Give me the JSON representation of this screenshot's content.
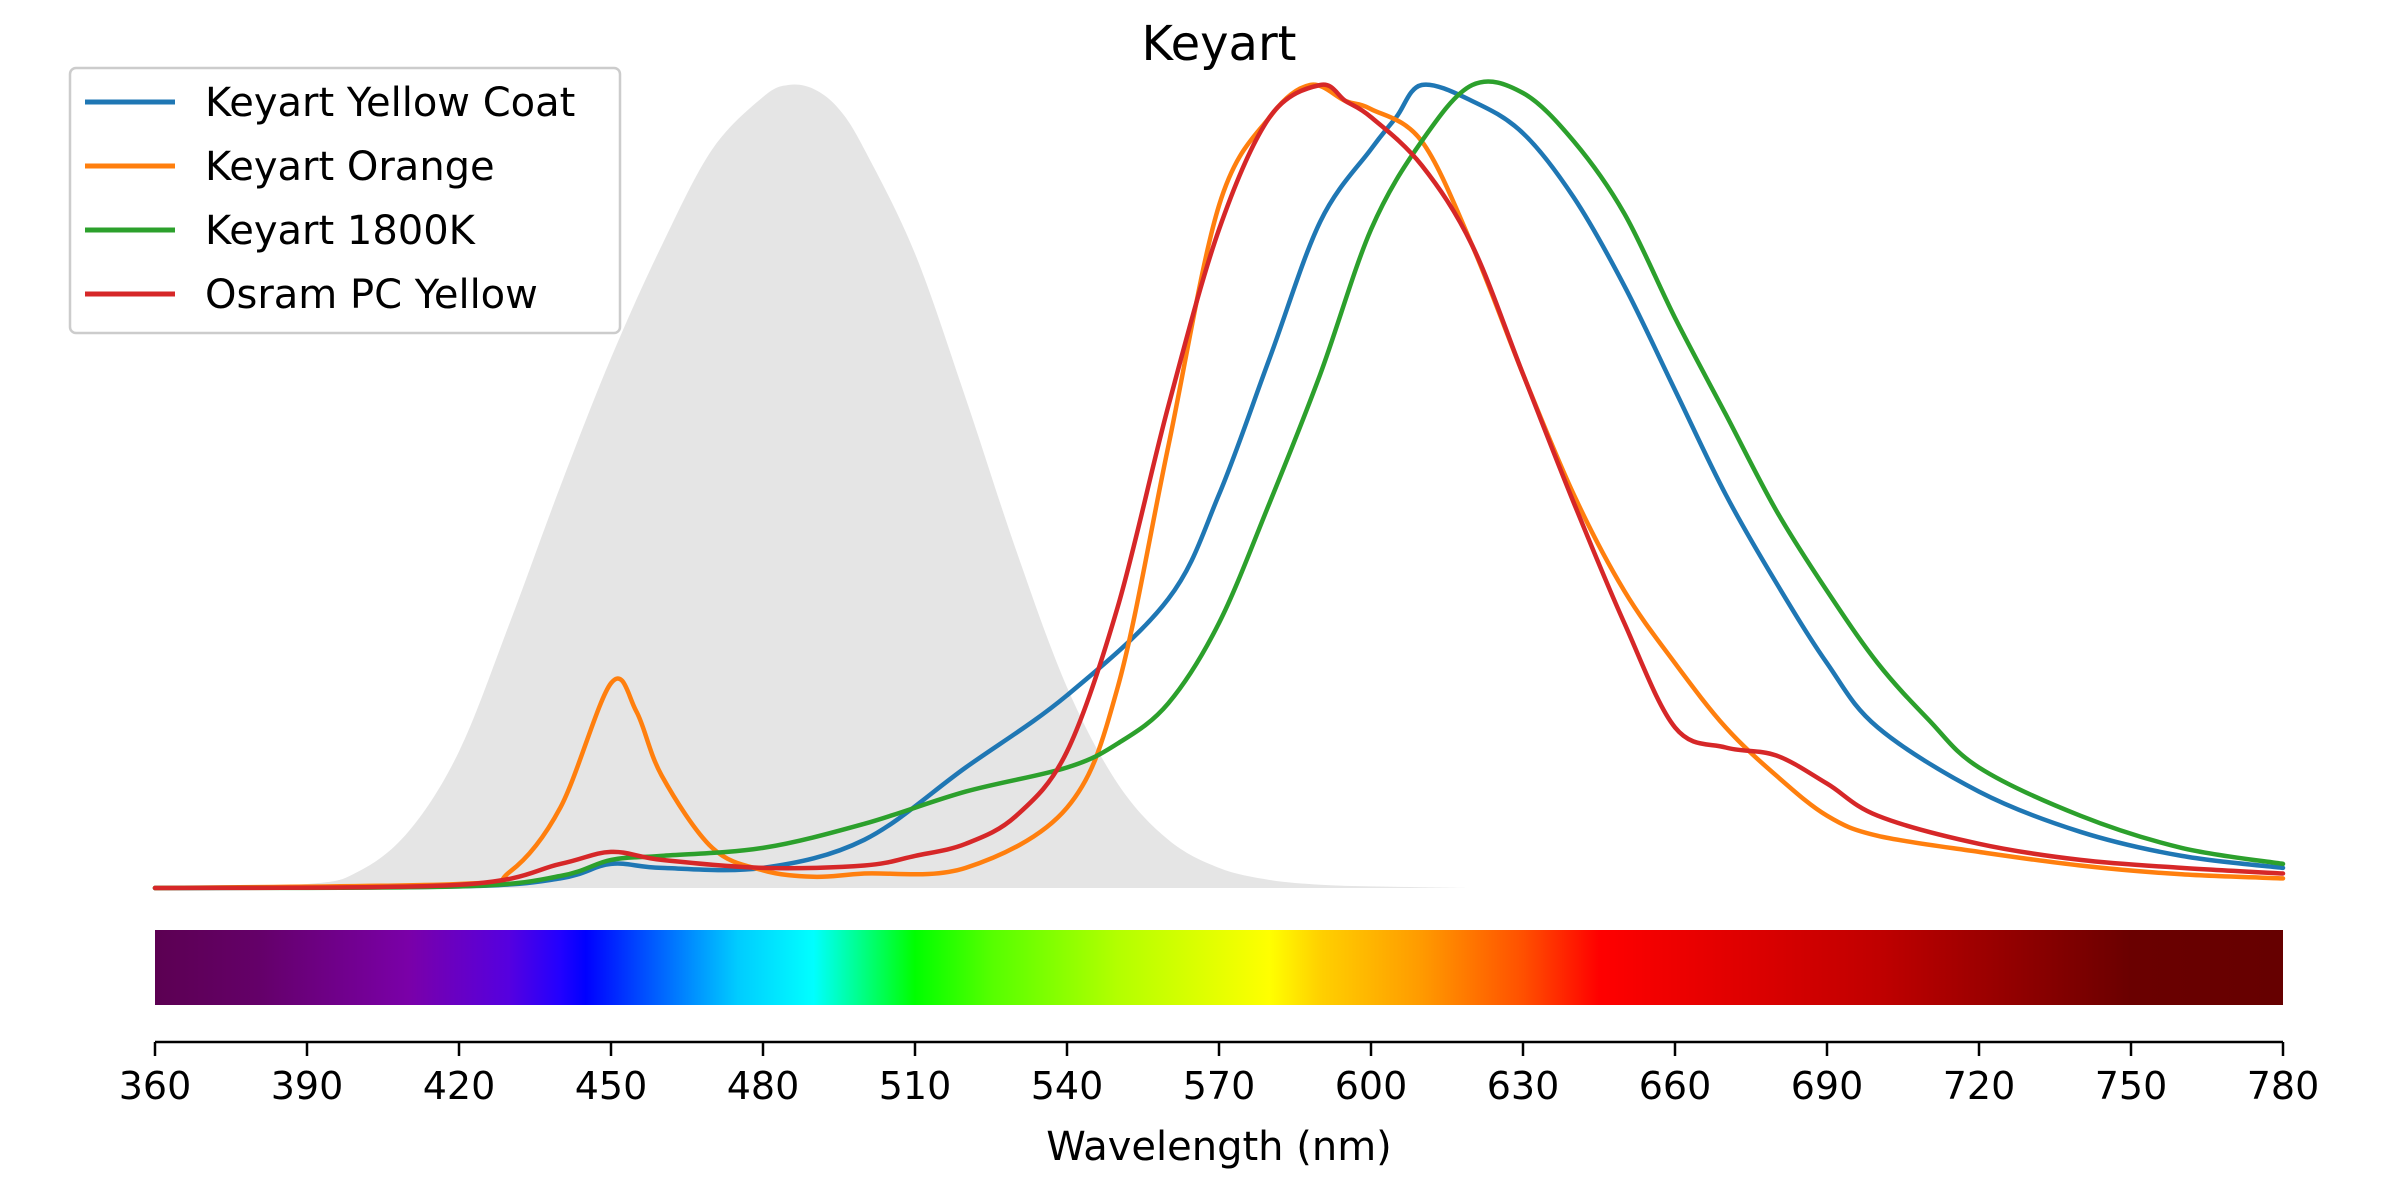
{
  "chart_data": {
    "type": "line",
    "title": "Keyart",
    "xlabel": "Wavelength (nm)",
    "ylabel": "",
    "xlim": [
      360,
      780
    ],
    "ylim": [
      0,
      1
    ],
    "grid": false,
    "legend_position": "top-left",
    "xticks": [
      360,
      390,
      420,
      450,
      480,
      510,
      540,
      570,
      600,
      630,
      660,
      690,
      720,
      750,
      780
    ],
    "background_curve": {
      "color": "#e5e5e5",
      "x": [
        360,
        390,
        400,
        410,
        420,
        430,
        440,
        450,
        460,
        470,
        480,
        485,
        490,
        495,
        500,
        510,
        520,
        530,
        540,
        550,
        560,
        570,
        580,
        590,
        600,
        610,
        620
      ],
      "y": [
        0,
        0.005,
        0.02,
        0.07,
        0.17,
        0.33,
        0.5,
        0.66,
        0.8,
        0.92,
        0.985,
        1.0,
        0.995,
        0.97,
        0.92,
        0.79,
        0.61,
        0.42,
        0.25,
        0.13,
        0.06,
        0.025,
        0.01,
        0.004,
        0.002,
        0.001,
        0
      ]
    },
    "spectrum_bar": {
      "stops": [
        {
          "nm": 360,
          "color": "#5c0052"
        },
        {
          "nm": 380,
          "color": "#640068"
        },
        {
          "nm": 410,
          "color": "#7a00a8"
        },
        {
          "nm": 430,
          "color": "#5500e0"
        },
        {
          "nm": 440,
          "color": "#2200ff"
        },
        {
          "nm": 445,
          "color": "#0000ff"
        },
        {
          "nm": 460,
          "color": "#0066ff"
        },
        {
          "nm": 475,
          "color": "#00ccff"
        },
        {
          "nm": 490,
          "color": "#00ffff"
        },
        {
          "nm": 500,
          "color": "#00ff80"
        },
        {
          "nm": 510,
          "color": "#00ff00"
        },
        {
          "nm": 525,
          "color": "#55ff00"
        },
        {
          "nm": 550,
          "color": "#b3ff00"
        },
        {
          "nm": 580,
          "color": "#ffff00"
        },
        {
          "nm": 590,
          "color": "#ffd000"
        },
        {
          "nm": 610,
          "color": "#ff9a00"
        },
        {
          "nm": 630,
          "color": "#ff5000"
        },
        {
          "nm": 645,
          "color": "#ff0000"
        },
        {
          "nm": 700,
          "color": "#c00000"
        },
        {
          "nm": 750,
          "color": "#6a0000"
        },
        {
          "nm": 780,
          "color": "#660000"
        }
      ]
    },
    "series": [
      {
        "name": "Keyart Yellow Coat",
        "color": "#1f77b4",
        "x": [
          360,
          420,
          440,
          450,
          460,
          480,
          500,
          520,
          540,
          560,
          570,
          580,
          590,
          600,
          605,
          610,
          620,
          630,
          640,
          650,
          660,
          670,
          680,
          690,
          700,
          720,
          740,
          760,
          780
        ],
        "y": [
          0.0,
          0.002,
          0.012,
          0.03,
          0.025,
          0.025,
          0.06,
          0.15,
          0.24,
          0.36,
          0.49,
          0.66,
          0.83,
          0.92,
          0.96,
          1.0,
          0.98,
          0.94,
          0.86,
          0.75,
          0.62,
          0.49,
          0.38,
          0.28,
          0.2,
          0.12,
          0.07,
          0.04,
          0.025
        ]
      },
      {
        "name": "Keyart Orange",
        "color": "#ff7f0e",
        "x": [
          360,
          420,
          430,
          440,
          450,
          455,
          460,
          470,
          480,
          490,
          500,
          520,
          540,
          550,
          560,
          570,
          580,
          588,
          595,
          600,
          610,
          620,
          630,
          640,
          650,
          660,
          670,
          680,
          690,
          700,
          720,
          740,
          760,
          780
        ],
        "y": [
          0.0,
          0.005,
          0.02,
          0.1,
          0.255,
          0.22,
          0.14,
          0.05,
          0.022,
          0.014,
          0.018,
          0.025,
          0.1,
          0.25,
          0.55,
          0.85,
          0.96,
          1.0,
          0.98,
          0.97,
          0.93,
          0.8,
          0.64,
          0.49,
          0.37,
          0.28,
          0.2,
          0.14,
          0.09,
          0.065,
          0.045,
          0.028,
          0.017,
          0.012
        ]
      },
      {
        "name": "Keyart 1800K",
        "color": "#2ca02c",
        "x": [
          360,
          420,
          440,
          450,
          460,
          480,
          500,
          520,
          540,
          550,
          560,
          570,
          580,
          590,
          600,
          610,
          620,
          630,
          640,
          650,
          660,
          670,
          680,
          690,
          700,
          710,
          720,
          740,
          760,
          780
        ],
        "y": [
          0.0,
          0.002,
          0.015,
          0.035,
          0.04,
          0.05,
          0.08,
          0.12,
          0.15,
          0.18,
          0.23,
          0.33,
          0.48,
          0.64,
          0.82,
          0.93,
          1.0,
          0.99,
          0.93,
          0.84,
          0.71,
          0.59,
          0.47,
          0.37,
          0.28,
          0.21,
          0.15,
          0.09,
          0.05,
          0.03
        ]
      },
      {
        "name": "Osram PC Yellow",
        "color": "#d62728",
        "x": [
          360,
          420,
          440,
          450,
          460,
          480,
          500,
          510,
          520,
          530,
          540,
          550,
          560,
          570,
          580,
          590,
          595,
          600,
          610,
          620,
          630,
          640,
          650,
          660,
          670,
          680,
          690,
          700,
          720,
          740,
          760,
          780
        ],
        "y": [
          0.0,
          0.004,
          0.03,
          0.045,
          0.035,
          0.025,
          0.028,
          0.04,
          0.055,
          0.09,
          0.17,
          0.35,
          0.6,
          0.82,
          0.96,
          1.0,
          0.98,
          0.96,
          0.9,
          0.8,
          0.64,
          0.48,
          0.33,
          0.2,
          0.175,
          0.165,
          0.13,
          0.09,
          0.055,
          0.035,
          0.025,
          0.018
        ]
      }
    ]
  }
}
